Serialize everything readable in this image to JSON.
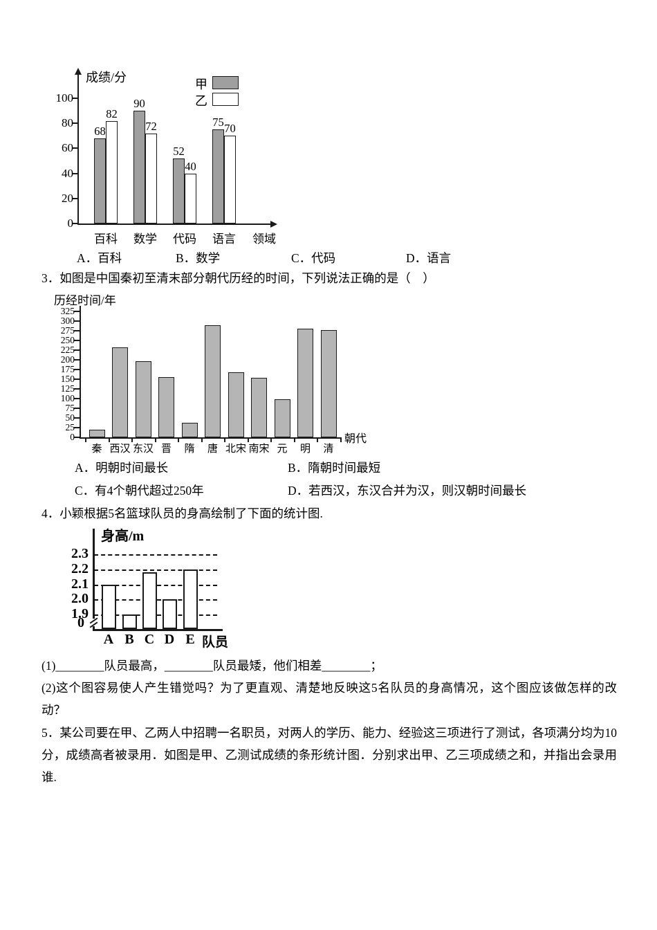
{
  "question2": {
    "options": [
      "A．百科",
      "B．数学",
      "C．代码",
      "D．语言"
    ]
  },
  "question3": {
    "text": "3．如图是中国秦初至清末部分朝代历经的时间，下列说法正确的是（　）",
    "options": [
      "A．明朝时间最长",
      "B．隋朝时间最短",
      "C．有4个朝代超过250年",
      "D．若西汉，东汉合并为汉，则汉朝时间最长"
    ]
  },
  "question4": {
    "text": "4．小颖根据5名篮球队员的身高绘制了下面的统计图.",
    "sub1": "(1)________队员最高，________队员最矮，他们相差________；",
    "sub2": "(2)这个图容易使人产生错觉吗？为了更直观、清楚地反映这5名队员的身高情况，这个图应该做怎样的改动？"
  },
  "question5": {
    "text": "5．某公司要在甲、乙两人中招聘一名职员，对两人的学历、能力、经验这三项进行了测试，各项满分均为10分，成绩高者被录用．如图是甲、乙测试成绩的条形统计图．分别求出甲、乙三项成绩之和，并指出会录用谁."
  },
  "colors": {
    "series_jia": "#9f9f9f",
    "series_yi": "#ffffff",
    "dynasty_bar": "#b5b5b5",
    "height_bar": "#ffffff",
    "ink": "#1a1a1a"
  },
  "chart_data": [
    {
      "type": "bar",
      "title": "",
      "ylabel": "成绩/分",
      "xlabel": "领域",
      "categories": [
        "百科",
        "数学",
        "代码",
        "语言"
      ],
      "series": [
        {
          "name": "甲",
          "color": "#9f9f9f",
          "values": [
            68,
            90,
            52,
            75
          ]
        },
        {
          "name": "乙",
          "color": "#ffffff",
          "values": [
            82,
            72,
            40,
            70
          ]
        }
      ],
      "yticks": [
        0,
        20,
        40,
        60,
        80,
        100
      ],
      "ylim": [
        0,
        110
      ],
      "grid": false,
      "legend_position": "top-right",
      "value_labels": true
    },
    {
      "type": "bar",
      "title": "",
      "ylabel": "历经时间/年",
      "xlabel": "朝代",
      "categories": [
        "秦",
        "西汉",
        "东汉",
        "晋",
        "隋",
        "唐",
        "北宋",
        "南宋",
        "元",
        "明",
        "清"
      ],
      "values": [
        20,
        232,
        196,
        155,
        37,
        290,
        167,
        153,
        98,
        280,
        276
      ],
      "yticks": [
        0,
        25,
        50,
        75,
        100,
        125,
        150,
        175,
        200,
        225,
        250,
        275,
        300,
        325
      ],
      "ylim": [
        0,
        325
      ],
      "grid": false,
      "legend_position": "none"
    },
    {
      "type": "bar",
      "title": "",
      "ylabel": "身高/m",
      "xlabel": "队员",
      "categories": [
        "A",
        "B",
        "C",
        "D",
        "E"
      ],
      "values": [
        2.1,
        1.9,
        2.18,
        2.0,
        2.2
      ],
      "yticks": [
        "0",
        "1.9",
        "2.0",
        "2.1",
        "2.2",
        "2.3"
      ],
      "ylim": [
        1.8,
        2.35
      ],
      "axis_break": true,
      "grid": "dashed",
      "legend_position": "none"
    }
  ]
}
